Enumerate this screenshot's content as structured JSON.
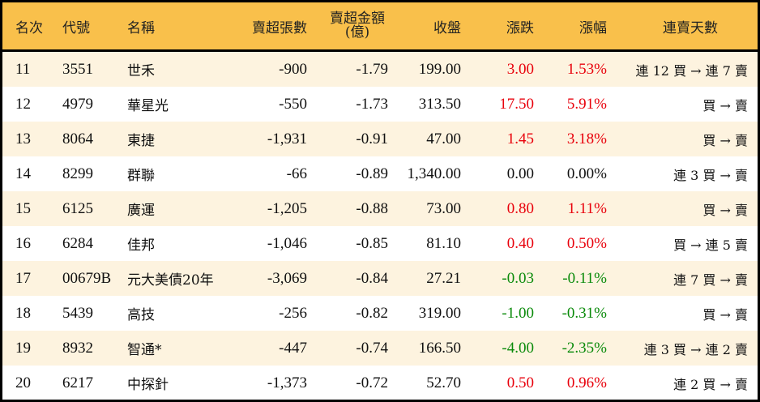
{
  "colors": {
    "header_bg": "#F9C04B",
    "row_alt_bg": "#FDF3DF",
    "row_bg": "#FFFFFF",
    "up": "#E8000B",
    "down": "#0A8A0A",
    "border": "#000000"
  },
  "header": {
    "rank": "名次",
    "code": "代號",
    "name": "名稱",
    "net_sell_lots": "賣超張數",
    "net_sell_amount_line1": "賣超金額",
    "net_sell_amount_line2": "(億)",
    "close": "收盤",
    "change": "漲跌",
    "change_pct": "漲幅",
    "streak": "連賣天數"
  },
  "rows": [
    {
      "rank": "11",
      "code": "3551",
      "name": "世禾",
      "lots": "-900",
      "amount": "-1.79",
      "close": "199.00",
      "change": "3.00",
      "pct": "1.53%",
      "dir": "up",
      "streak": "連 12 買 → 連 7 賣"
    },
    {
      "rank": "12",
      "code": "4979",
      "name": "華星光",
      "lots": "-550",
      "amount": "-1.73",
      "close": "313.50",
      "change": "17.50",
      "pct": "5.91%",
      "dir": "up",
      "streak": "買 → 賣"
    },
    {
      "rank": "13",
      "code": "8064",
      "name": "東捷",
      "lots": "-1,931",
      "amount": "-0.91",
      "close": "47.00",
      "change": "1.45",
      "pct": "3.18%",
      "dir": "up",
      "streak": "買 → 賣"
    },
    {
      "rank": "14",
      "code": "8299",
      "name": "群聯",
      "lots": "-66",
      "amount": "-0.89",
      "close": "1,340.00",
      "change": "0.00",
      "pct": "0.00%",
      "dir": "flat",
      "streak": "連 3 買 → 賣"
    },
    {
      "rank": "15",
      "code": "6125",
      "name": "廣運",
      "lots": "-1,205",
      "amount": "-0.88",
      "close": "73.00",
      "change": "0.80",
      "pct": "1.11%",
      "dir": "up",
      "streak": "買 → 賣"
    },
    {
      "rank": "16",
      "code": "6284",
      "name": "佳邦",
      "lots": "-1,046",
      "amount": "-0.85",
      "close": "81.10",
      "change": "0.40",
      "pct": "0.50%",
      "dir": "up",
      "streak": "買 → 連 5 賣"
    },
    {
      "rank": "17",
      "code": "00679B",
      "name": "元大美債20年",
      "lots": "-3,069",
      "amount": "-0.84",
      "close": "27.21",
      "change": "-0.03",
      "pct": "-0.11%",
      "dir": "down",
      "streak": "連 7 買 → 賣"
    },
    {
      "rank": "18",
      "code": "5439",
      "name": "高技",
      "lots": "-256",
      "amount": "-0.82",
      "close": "319.00",
      "change": "-1.00",
      "pct": "-0.31%",
      "dir": "down",
      "streak": "買 → 賣"
    },
    {
      "rank": "19",
      "code": "8932",
      "name": "智通*",
      "lots": "-447",
      "amount": "-0.74",
      "close": "166.50",
      "change": "-4.00",
      "pct": "-2.35%",
      "dir": "down",
      "streak": "連 3 買 → 連 2 賣"
    },
    {
      "rank": "20",
      "code": "6217",
      "name": "中探針",
      "lots": "-1,373",
      "amount": "-0.72",
      "close": "52.70",
      "change": "0.50",
      "pct": "0.96%",
      "dir": "up",
      "streak": "連 2 買 → 賣"
    }
  ]
}
